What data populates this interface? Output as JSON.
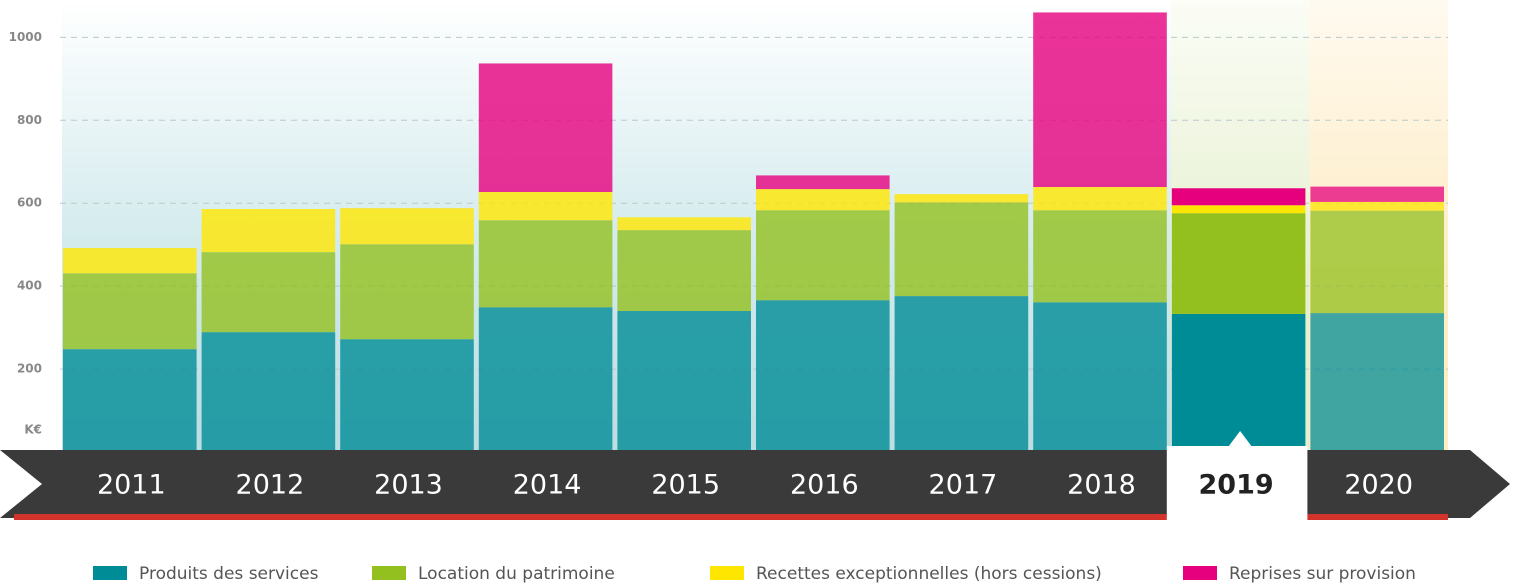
{
  "chart_data": {
    "type": "stacked_bar",
    "y_unit": "K€",
    "categories": [
      "2011",
      "2012",
      "2013",
      "2014",
      "2015",
      "2016",
      "2017",
      "2018",
      "2019",
      "2020"
    ],
    "highlight_index": 8,
    "series": [
      {
        "name": "Produits des services",
        "color": "#008c96",
        "values": [
          248,
          289,
          272,
          349,
          340,
          366,
          376,
          361,
          333,
          335
        ]
      },
      {
        "name": "Location du patrimoine",
        "color": "#93c01f",
        "values": [
          183,
          193,
          229,
          210,
          195,
          217,
          226,
          222,
          243,
          247
        ]
      },
      {
        "name": "Recettes exceptionnelles (hors cessions)",
        "color": "#ffe600",
        "values": [
          61,
          104,
          87,
          68,
          31,
          51,
          20,
          56,
          19,
          21
        ]
      },
      {
        "name": "Reprises sur provision",
        "color": "#e6007e",
        "values": [
          0,
          0,
          0,
          310,
          0,
          33,
          0,
          421,
          41,
          37
        ]
      }
    ],
    "ylim": [
      0,
      1090
    ],
    "yticks": [
      200,
      400,
      600,
      800,
      1000
    ],
    "grid": true
  }
}
